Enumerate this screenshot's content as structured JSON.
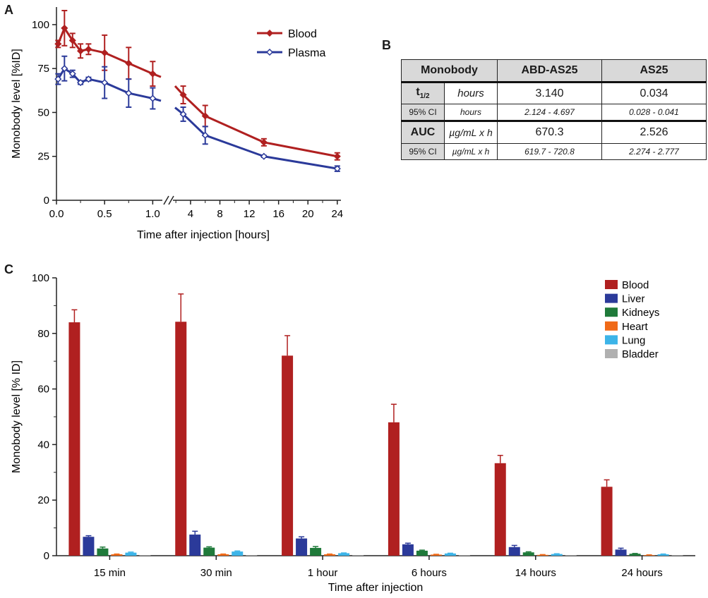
{
  "panel_a": {
    "letter": "A"
  },
  "panel_b": {
    "letter": "B",
    "headers": [
      "Monobody",
      "ABD-AS25",
      "AS25"
    ],
    "rows": [
      {
        "label": "t",
        "label_sub": "1/2",
        "unit": "hours",
        "abd": "3.140",
        "as25": "0.034"
      },
      {
        "label": "95% CI",
        "unit": "hours",
        "abd": "2.124 - 4.697",
        "as25": "0.028 - 0.041"
      },
      {
        "label": "AUC",
        "unit": "µg/mL x h",
        "abd": "670.3",
        "as25": "2.526"
      },
      {
        "label": "95% CI",
        "unit": "µg/mL x h",
        "abd": "619.7 - 720.8",
        "as25": "2.274 - 2.777"
      }
    ]
  },
  "panel_c": {
    "letter": "C"
  },
  "colors": {
    "blood": "#b02020",
    "plasma": "#2b3a9a",
    "liver": "#2b3a9a",
    "kidneys": "#1f7a3a",
    "heart": "#f06a18",
    "lung": "#3cb4e8",
    "bladder": "#b0b0b0"
  },
  "chart_data": [
    {
      "type": "line",
      "title": "",
      "xlabel": "Time after injection [hours]",
      "ylabel": "Monobody level [%ID]",
      "ylim": [
        0,
        110
      ],
      "y_ticks": [
        "0",
        "25",
        "50",
        "75",
        "100"
      ],
      "x_segment_1": {
        "range": [
          0,
          1.1
        ],
        "ticks": [
          "0.0",
          "0.5",
          "1.0"
        ]
      },
      "x_segment_2": {
        "range": [
          1.6,
          24.5
        ],
        "ticks": [
          "4",
          "8",
          "12",
          "16",
          "20",
          "24"
        ]
      },
      "legend": "top-right",
      "series": [
        {
          "name": "Blood",
          "x": [
            0.017,
            0.083,
            0.167,
            0.25,
            0.333,
            0.5,
            0.75,
            1.0,
            3,
            6,
            14,
            24
          ],
          "y": [
            89,
            98,
            91,
            85,
            86,
            84,
            78,
            72,
            60,
            48,
            33,
            25
          ],
          "err": [
            2,
            10,
            4,
            4,
            3,
            10,
            9,
            7,
            5,
            6,
            2,
            2
          ]
        },
        {
          "name": "Plasma",
          "x": [
            0.017,
            0.083,
            0.167,
            0.25,
            0.333,
            0.5,
            0.75,
            1.0,
            3,
            6,
            14,
            24
          ],
          "y": [
            69,
            75,
            72,
            67,
            69,
            67,
            61,
            58,
            49,
            37,
            25,
            18
          ],
          "err": [
            3,
            7,
            2,
            1,
            1,
            9,
            8,
            6,
            4,
            5,
            0.5,
            1.5
          ]
        }
      ]
    },
    {
      "type": "bar",
      "title": "",
      "xlabel": "Time after injection",
      "ylabel": "Monobody level [% ID]",
      "ylim": [
        0,
        100
      ],
      "y_ticks": [
        "0",
        "20",
        "40",
        "60",
        "80",
        "100"
      ],
      "legend": "top-right",
      "categories": [
        "15 min",
        "30 min",
        "1 hour",
        "6 hours",
        "14 hours",
        "24 hours"
      ],
      "series": [
        {
          "name": "Blood",
          "values": [
            84,
            84.2,
            72,
            48,
            33.3,
            24.8
          ],
          "err": [
            4.5,
            10,
            7.2,
            6.5,
            2.8,
            2.5
          ]
        },
        {
          "name": "Liver",
          "values": [
            6.8,
            7.6,
            6.2,
            4.1,
            3.1,
            2.2
          ],
          "err": [
            0.4,
            1.2,
            0.6,
            0.4,
            0.6,
            0.5
          ]
        },
        {
          "name": "Kidneys",
          "values": [
            2.6,
            2.9,
            2.8,
            1.8,
            1.2,
            0.7
          ],
          "err": [
            0.5,
            0.3,
            0.5,
            0.2,
            0.2,
            0.1
          ]
        },
        {
          "name": "Heart",
          "values": [
            0.5,
            0.5,
            0.5,
            0.4,
            0.3,
            0.2
          ],
          "err": [
            0.1,
            0.1,
            0.1,
            0.1,
            0.1,
            0.1
          ]
        },
        {
          "name": "Lung",
          "values": [
            1.1,
            1.5,
            0.9,
            0.8,
            0.6,
            0.5
          ],
          "err": [
            0.2,
            0.2,
            0.1,
            0.1,
            0.1,
            0.1
          ]
        },
        {
          "name": "Bladder",
          "values": [
            0.2,
            0.2,
            0.2,
            0.2,
            0.2,
            0.2
          ],
          "err": [
            0,
            0,
            0,
            0,
            0,
            0
          ]
        }
      ]
    }
  ]
}
